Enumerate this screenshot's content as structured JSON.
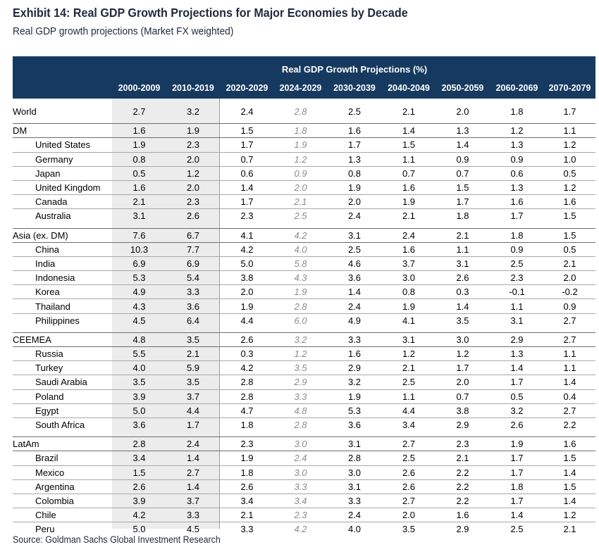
{
  "title": "Exhibit 14: Real GDP Growth Projections for Major Economies by Decade",
  "subtitle": "Real GDP growth projections (Market FX weighted)",
  "header_group": "Real GDP Growth Projections (%)",
  "columns": [
    "2000-2009",
    "2010-2019",
    "2020-2029",
    "2024-2029",
    "2030-2039",
    "2040-2049",
    "2050-2059",
    "2060-2069",
    "2070-2079"
  ],
  "groups": [
    {
      "name": "World",
      "values": [
        "2.7",
        "3.2",
        "2.4",
        "2.8",
        "2.5",
        "2.1",
        "2.0",
        "1.8",
        "1.7"
      ],
      "rows": []
    },
    {
      "name": "DM",
      "values": [
        "1.6",
        "1.9",
        "1.5",
        "1.8",
        "1.6",
        "1.4",
        "1.3",
        "1.2",
        "1.1"
      ],
      "rows": [
        {
          "name": "United States",
          "values": [
            "1.9",
            "2.3",
            "1.7",
            "1.9",
            "1.7",
            "1.5",
            "1.4",
            "1.3",
            "1.2"
          ]
        },
        {
          "name": "Germany",
          "values": [
            "0.8",
            "2.0",
            "0.7",
            "1.2",
            "1.3",
            "1.1",
            "0.9",
            "0.9",
            "1.0"
          ]
        },
        {
          "name": "Japan",
          "values": [
            "0.5",
            "1.2",
            "0.6",
            "0.9",
            "0.8",
            "0.7",
            "0.7",
            "0.6",
            "0.5"
          ]
        },
        {
          "name": "United Kingdom",
          "values": [
            "1.6",
            "2.0",
            "1.4",
            "2.0",
            "1.9",
            "1.6",
            "1.5",
            "1.3",
            "1.2"
          ]
        },
        {
          "name": "Canada",
          "values": [
            "2.1",
            "2.3",
            "1.7",
            "2.1",
            "2.0",
            "1.9",
            "1.7",
            "1.6",
            "1.6"
          ]
        },
        {
          "name": "Australia",
          "values": [
            "3.1",
            "2.6",
            "2.3",
            "2.5",
            "2.4",
            "2.1",
            "1.8",
            "1.7",
            "1.5"
          ]
        }
      ]
    },
    {
      "name": "Asia (ex. DM)",
      "values": [
        "7.6",
        "6.7",
        "4.1",
        "4.2",
        "3.1",
        "2.4",
        "2.1",
        "1.8",
        "1.5"
      ],
      "rows": [
        {
          "name": "China",
          "values": [
            "10.3",
            "7.7",
            "4.2",
            "4.0",
            "2.5",
            "1.6",
            "1.1",
            "0.9",
            "0.5"
          ]
        },
        {
          "name": "India",
          "values": [
            "6.9",
            "6.9",
            "5.0",
            "5.8",
            "4.6",
            "3.7",
            "3.1",
            "2.5",
            "2.1"
          ]
        },
        {
          "name": "Indonesia",
          "values": [
            "5.3",
            "5.4",
            "3.8",
            "4.3",
            "3.6",
            "3.0",
            "2.6",
            "2.3",
            "2.0"
          ]
        },
        {
          "name": "Korea",
          "values": [
            "4.9",
            "3.3",
            "2.0",
            "1.9",
            "1.4",
            "0.8",
            "0.3",
            "-0.1",
            "-0.2"
          ]
        },
        {
          "name": "Thailand",
          "values": [
            "4.3",
            "3.6",
            "1.9",
            "2.8",
            "2.4",
            "1.9",
            "1.4",
            "1.1",
            "0.9"
          ]
        },
        {
          "name": "Philippines",
          "values": [
            "4.5",
            "6.4",
            "4.4",
            "6.0",
            "4.9",
            "4.1",
            "3.5",
            "3.1",
            "2.7"
          ]
        }
      ]
    },
    {
      "name": "CEEMEA",
      "values": [
        "4.8",
        "3.5",
        "2.6",
        "3.2",
        "3.3",
        "3.1",
        "3.0",
        "2.9",
        "2.7"
      ],
      "rows": [
        {
          "name": "Russia",
          "values": [
            "5.5",
            "2.1",
            "0.3",
            "1.2",
            "1.6",
            "1.2",
            "1.2",
            "1.3",
            "1.1"
          ]
        },
        {
          "name": "Turkey",
          "values": [
            "4.0",
            "5.9",
            "4.2",
            "3.5",
            "2.9",
            "2.1",
            "1.7",
            "1.4",
            "1.1"
          ]
        },
        {
          "name": "Saudi Arabia",
          "values": [
            "3.5",
            "3.5",
            "2.8",
            "2.9",
            "3.2",
            "2.5",
            "2.0",
            "1.7",
            "1.4"
          ]
        },
        {
          "name": "Poland",
          "values": [
            "3.9",
            "3.7",
            "2.8",
            "3.3",
            "1.9",
            "1.1",
            "0.7",
            "0.5",
            "0.4"
          ]
        },
        {
          "name": "Egypt",
          "values": [
            "5.0",
            "4.4",
            "4.7",
            "4.8",
            "5.3",
            "4.4",
            "3.8",
            "3.2",
            "2.7"
          ]
        },
        {
          "name": "South Africa",
          "values": [
            "3.6",
            "1.7",
            "1.8",
            "2.8",
            "3.6",
            "3.4",
            "2.9",
            "2.6",
            "2.2"
          ]
        }
      ]
    },
    {
      "name": "LatAm",
      "values": [
        "2.8",
        "2.4",
        "2.3",
        "3.0",
        "3.1",
        "2.7",
        "2.3",
        "1.9",
        "1.6"
      ],
      "rows": [
        {
          "name": "Brazil",
          "values": [
            "3.4",
            "1.4",
            "1.9",
            "2.4",
            "2.8",
            "2.5",
            "2.1",
            "1.7",
            "1.5"
          ]
        },
        {
          "name": "Mexico",
          "values": [
            "1.5",
            "2.7",
            "1.8",
            "3.0",
            "3.0",
            "2.6",
            "2.2",
            "1.7",
            "1.4"
          ]
        },
        {
          "name": "Argentina",
          "values": [
            "2.6",
            "1.4",
            "2.6",
            "3.3",
            "3.1",
            "2.6",
            "2.2",
            "1.8",
            "1.5"
          ]
        },
        {
          "name": "Colombia",
          "values": [
            "3.9",
            "3.7",
            "3.4",
            "3.4",
            "3.3",
            "2.7",
            "2.2",
            "1.7",
            "1.4"
          ]
        },
        {
          "name": "Chile",
          "values": [
            "4.2",
            "3.3",
            "2.1",
            "2.3",
            "2.4",
            "2.0",
            "1.6",
            "1.4",
            "1.2"
          ]
        },
        {
          "name": "Peru",
          "values": [
            "5.0",
            "4.5",
            "3.3",
            "4.2",
            "4.0",
            "3.5",
            "2.9",
            "2.5",
            "2.1"
          ]
        }
      ]
    }
  ],
  "source": "Source: Goldman Sachs Global Investment Research"
}
